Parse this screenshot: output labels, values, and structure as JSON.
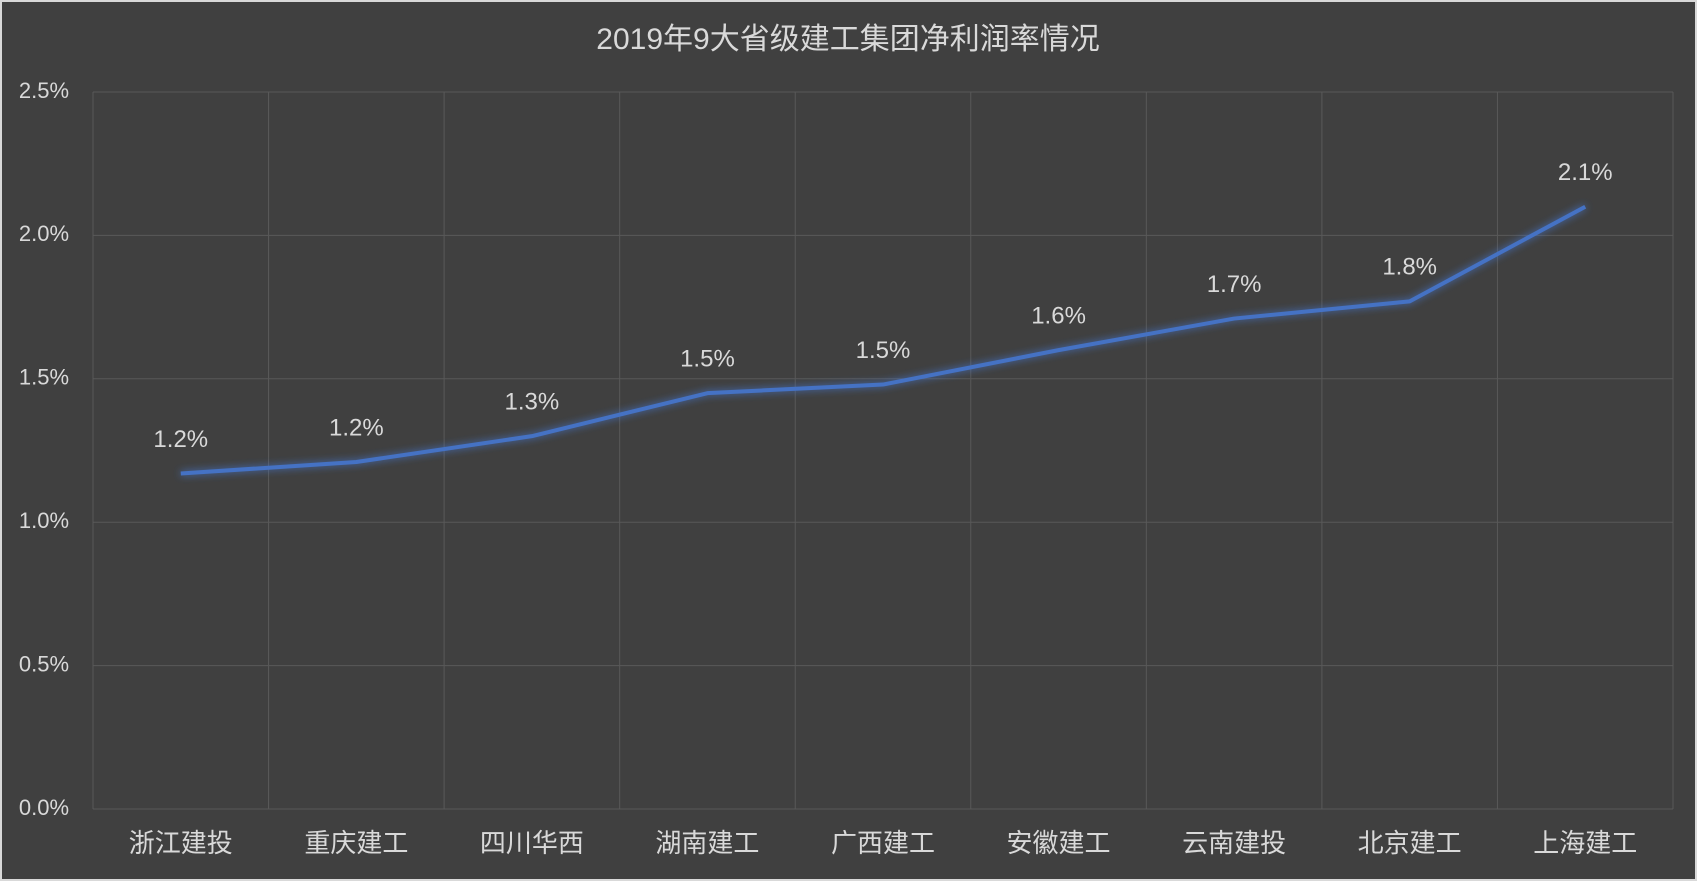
{
  "chart_data": {
    "type": "line",
    "title": "2019年9大省级建工集团净利润率情况",
    "categories": [
      "浙江建投",
      "重庆建工",
      "四川华西",
      "湖南建工",
      "广西建工",
      "安徽建工",
      "云南建投",
      "北京建工",
      "上海建工"
    ],
    "series": [
      {
        "name": "净利润率",
        "color": "#4472c4",
        "values": [
          1.17,
          1.21,
          1.3,
          1.45,
          1.48,
          1.6,
          1.71,
          1.77,
          2.1
        ],
        "value_labels": [
          "1.2%",
          "1.2%",
          "1.3%",
          "1.5%",
          "1.5%",
          "1.6%",
          "1.7%",
          "1.8%",
          "2.1%"
        ]
      }
    ],
    "ylim": [
      0,
      2.5
    ],
    "yticks": [
      {
        "value": 0,
        "label": "0.0%"
      },
      {
        "value": 0.5,
        "label": "0.5%"
      },
      {
        "value": 1,
        "label": "1.0%"
      },
      {
        "value": 1.5,
        "label": "1.5%"
      },
      {
        "value": 2,
        "label": "2.0%"
      },
      {
        "value": 2.5,
        "label": "2.5%"
      }
    ],
    "grid": true
  }
}
